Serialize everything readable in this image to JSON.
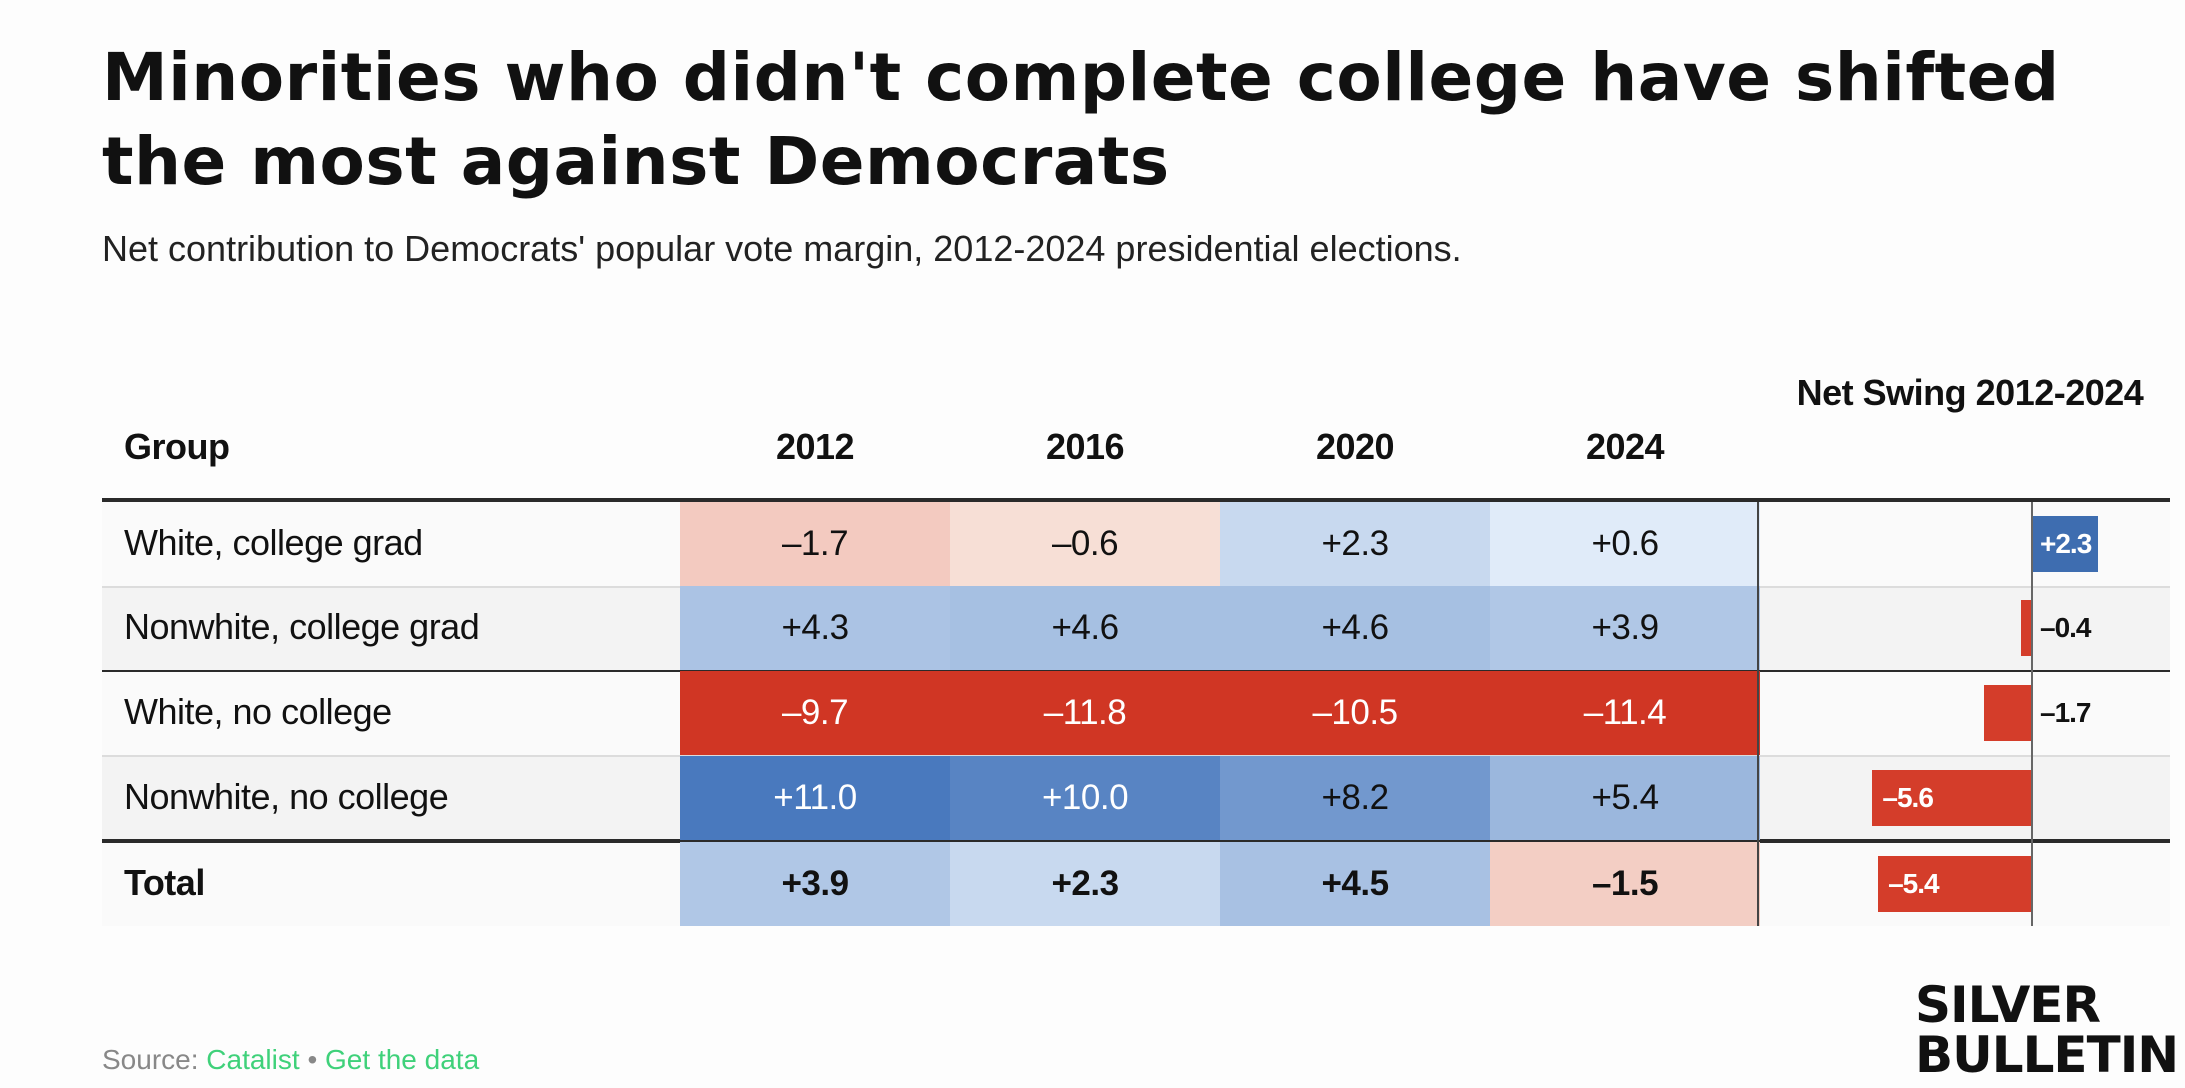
{
  "title": "Minorities who didn't complete college have shifted the most against Democrats",
  "subtitle": "Net contribution to Democrats' popular vote margin, 2012-2024 presidential elections.",
  "table_headers": {
    "group": "Group",
    "years": [
      "2012",
      "2016",
      "2020",
      "2024"
    ],
    "swing": "Net Swing 2012-2024"
  },
  "chart_data": {
    "type": "table",
    "columns": [
      "2012",
      "2016",
      "2020",
      "2024"
    ],
    "rows": [
      {
        "group": "White, college grad",
        "values": [
          -1.7,
          -0.6,
          2.3,
          0.6
        ],
        "labels": [
          "–1.7",
          "–0.6",
          "+2.3",
          "+0.6"
        ],
        "swing": 2.3,
        "swing_label": "+2.3"
      },
      {
        "group": "Nonwhite, college grad",
        "values": [
          4.3,
          4.6,
          4.6,
          3.9
        ],
        "labels": [
          "+4.3",
          "+4.6",
          "+4.6",
          "+3.9"
        ],
        "swing": -0.4,
        "swing_label": "–0.4"
      },
      {
        "group": "White, no college",
        "values": [
          -9.7,
          -11.8,
          -10.5,
          -11.4
        ],
        "labels": [
          "–9.7",
          "–11.8",
          "–10.5",
          "–11.4"
        ],
        "swing": -1.7,
        "swing_label": "–1.7"
      },
      {
        "group": "Nonwhite, no college",
        "values": [
          11.0,
          10.0,
          8.2,
          5.4
        ],
        "labels": [
          "+11.0",
          "+10.0",
          "+8.2",
          "+5.4"
        ],
        "swing": -5.6,
        "swing_label": "–5.6"
      }
    ],
    "total": {
      "group": "Total",
      "values": [
        3.9,
        2.3,
        4.5,
        -1.5
      ],
      "labels": [
        "+3.9",
        "+2.3",
        "+4.5",
        "–1.5"
      ],
      "swing": -5.4,
      "swing_label": "–5.4"
    },
    "colors": {
      "positive_bar": "#3e6db0",
      "negative_bar": "#d43d2a"
    }
  },
  "source": {
    "prefix": "Source:",
    "name": "Catalist",
    "separator": "•",
    "data_link": "Get the data"
  },
  "logo": {
    "line1": "SILVER",
    "line2": "BULLETIN"
  }
}
